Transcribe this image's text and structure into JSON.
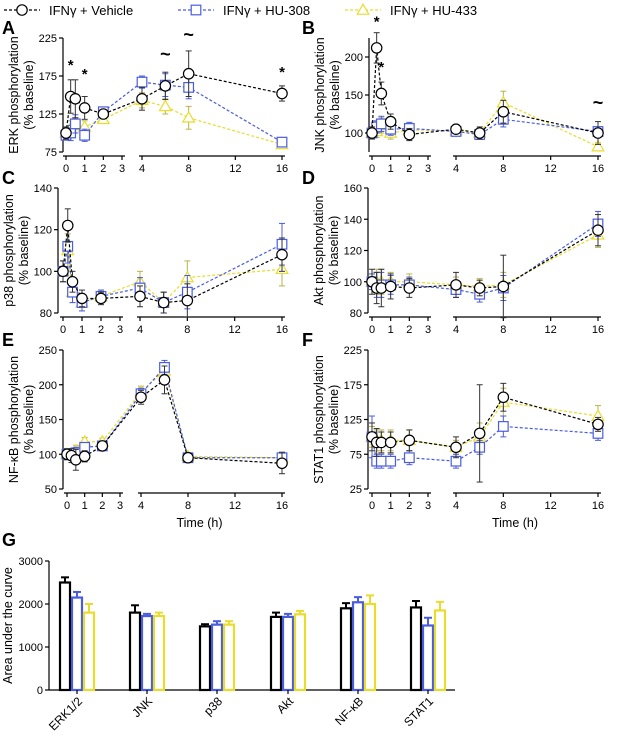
{
  "legend": {
    "items": [
      {
        "label": "IFNγ + Vehicle",
        "color": "#000000",
        "marker": "circle"
      },
      {
        "label": "IFNγ + HU-308",
        "color": "#4a5ce0",
        "marker": "square"
      },
      {
        "label": "IFNγ + HU-433",
        "color": "#e8dc2c",
        "marker": "triangle"
      }
    ]
  },
  "colors": {
    "vehicle": "#000000",
    "hu308": "#4a5ce0",
    "hu433": "#e8dc2c"
  },
  "time_label": "Time (h)",
  "chart_data": [
    {
      "panel": "A",
      "type": "line",
      "ylabel": [
        "ERK phosphorylation",
        "(% baseline)"
      ],
      "ylim": [
        75,
        225
      ],
      "yticks": [
        75,
        125,
        175,
        225
      ],
      "xticks_left": [
        0,
        1,
        2,
        3
      ],
      "xticks_right": [
        4,
        8,
        12,
        16
      ],
      "xlabel": "",
      "series": [
        {
          "name": "IFNγ + Vehicle",
          "x": [
            0,
            0.25,
            0.5,
            1,
            2,
            4,
            6,
            8,
            16
          ],
          "y": [
            100,
            148,
            145,
            133,
            125,
            145,
            162,
            178,
            152
          ],
          "err": [
            8,
            22,
            25,
            15,
            5,
            15,
            18,
            30,
            10
          ]
        },
        {
          "name": "IFNγ + HU-308",
          "x": [
            0,
            0.25,
            0.5,
            1,
            2,
            4,
            6,
            8,
            16
          ],
          "y": [
            97,
            100,
            112,
            97,
            128,
            167,
            163,
            160,
            88
          ],
          "err": [
            5,
            10,
            12,
            8,
            5,
            8,
            15,
            15,
            5
          ]
        },
        {
          "name": "IFNγ + HU-433",
          "x": [
            0,
            0.25,
            0.5,
            1,
            2,
            4,
            6,
            8,
            16
          ],
          "y": [
            100,
            106,
            110,
            108,
            118,
            143,
            135,
            120,
            85
          ],
          "err": [
            5,
            10,
            10,
            8,
            5,
            10,
            10,
            15,
            5
          ]
        }
      ],
      "annotations": [
        {
          "x": 0.25,
          "y": 183,
          "text": "*"
        },
        {
          "x": 1,
          "y": 171,
          "text": "*"
        },
        {
          "x": 6,
          "y": 196,
          "text": "~"
        },
        {
          "x": 8,
          "y": 222,
          "text": "~"
        },
        {
          "x": 16,
          "y": 174,
          "text": "*"
        }
      ]
    },
    {
      "panel": "B",
      "type": "line",
      "ylabel": [
        "JNK phosphorylation",
        "(% baseline)"
      ],
      "ylim": [
        75,
        225
      ],
      "yticks": [
        100,
        150,
        200
      ],
      "xticks_left": [
        0,
        1,
        2,
        3
      ],
      "xticks_right": [
        4,
        8,
        12,
        16
      ],
      "xlabel": "",
      "series": [
        {
          "name": "IFNγ + Vehicle",
          "x": [
            0,
            0.25,
            0.5,
            1,
            2,
            4,
            6,
            8,
            16
          ],
          "y": [
            100,
            212,
            152,
            115,
            98,
            105,
            100,
            128,
            100
          ],
          "err": [
            8,
            20,
            15,
            10,
            8,
            5,
            8,
            15,
            15
          ]
        },
        {
          "name": "IFNγ + HU-308",
          "x": [
            0,
            0.25,
            0.5,
            1,
            2,
            4,
            6,
            8,
            16
          ],
          "y": [
            100,
            108,
            112,
            105,
            106,
            102,
            98,
            118,
            102
          ],
          "err": [
            5,
            8,
            10,
            8,
            8,
            5,
            5,
            10,
            5
          ]
        },
        {
          "name": "IFNγ + HU-433",
          "x": [
            0,
            0.25,
            0.5,
            1,
            2,
            4,
            6,
            8,
            16
          ],
          "y": [
            100,
            102,
            110,
            100,
            104,
            103,
            100,
            140,
            82
          ],
          "err": [
            5,
            8,
            10,
            8,
            8,
            5,
            5,
            15,
            5
          ]
        }
      ],
      "annotations": [
        {
          "x": 0.25,
          "y": 240,
          "text": "*"
        },
        {
          "x": 0.5,
          "y": 180,
          "text": "*"
        },
        {
          "x": 16,
          "y": 132,
          "text": "~"
        }
      ]
    },
    {
      "panel": "C",
      "type": "line",
      "ylabel": [
        "p38 phosphorylation",
        "(% baseline)"
      ],
      "ylim": [
        80,
        140
      ],
      "yticks": [
        80,
        100,
        120,
        140
      ],
      "xticks_left": [
        0,
        1,
        2,
        3
      ],
      "xticks_right": [
        4,
        8,
        12,
        16
      ],
      "xlabel": "",
      "series": [
        {
          "name": "IFNγ + Vehicle",
          "x": [
            0,
            0.25,
            0.5,
            1,
            2,
            4,
            6,
            8,
            16
          ],
          "y": [
            100,
            122,
            95,
            87,
            87,
            88,
            85,
            86,
            108
          ],
          "err": [
            5,
            8,
            5,
            4,
            3,
            5,
            5,
            8,
            8
          ]
        },
        {
          "name": "IFNγ + HU-308",
          "x": [
            0,
            0.25,
            0.5,
            1,
            2,
            4,
            6,
            8,
            16
          ],
          "y": [
            100,
            112,
            90,
            85,
            88,
            92,
            85,
            90,
            113
          ],
          "err": [
            5,
            8,
            5,
            4,
            3,
            5,
            5,
            8,
            10
          ]
        },
        {
          "name": "IFNγ + HU-433",
          "x": [
            0,
            0.25,
            0.5,
            1,
            2,
            4,
            6,
            8,
            16
          ],
          "y": [
            100,
            110,
            90,
            85,
            88,
            95,
            85,
            97,
            101
          ],
          "err": [
            5,
            8,
            5,
            4,
            3,
            5,
            5,
            8,
            8
          ]
        }
      ],
      "annotations": []
    },
    {
      "panel": "D",
      "type": "line",
      "ylabel": [
        "Akt phosphorylation",
        "(% baseline)"
      ],
      "ylim": [
        80,
        160
      ],
      "yticks": [
        80,
        100,
        120,
        140,
        160
      ],
      "xticks_left": [
        0,
        1,
        2,
        3
      ],
      "xticks_right": [
        4,
        8,
        12,
        16
      ],
      "xlabel": "",
      "series": [
        {
          "name": "IFNγ + Vehicle",
          "x": [
            0,
            0.25,
            0.5,
            1,
            2,
            4,
            6,
            8,
            16
          ],
          "y": [
            100,
            96,
            96,
            97,
            96,
            98,
            96,
            97,
            133
          ],
          "err": [
            8,
            10,
            12,
            8,
            6,
            8,
            5,
            20,
            10
          ]
        },
        {
          "name": "IFNγ + HU-308",
          "x": [
            0,
            0.25,
            0.5,
            1,
            2,
            4,
            6,
            8,
            16
          ],
          "y": [
            100,
            98,
            98,
            98,
            98,
            95,
            92,
            96,
            137
          ],
          "err": [
            5,
            8,
            8,
            6,
            5,
            5,
            5,
            8,
            8
          ]
        },
        {
          "name": "IFNγ + HU-433",
          "x": [
            0,
            0.25,
            0.5,
            1,
            2,
            4,
            6,
            8,
            16
          ],
          "y": [
            100,
            100,
            100,
            100,
            100,
            98,
            97,
            98,
            130
          ],
          "err": [
            5,
            8,
            8,
            6,
            5,
            5,
            5,
            8,
            8
          ]
        }
      ],
      "annotations": []
    },
    {
      "panel": "E",
      "type": "line",
      "ylabel": [
        "NF-κB phosphorylation",
        "(% baseline)"
      ],
      "ylim": [
        50,
        250
      ],
      "yticks": [
        50,
        100,
        150,
        200,
        250
      ],
      "xticks_left": [
        0,
        1,
        2,
        3
      ],
      "xticks_right": [
        4,
        8,
        12,
        16
      ],
      "xlabel": "Time (h)",
      "series": [
        {
          "name": "IFNγ + Vehicle",
          "x": [
            0,
            0.25,
            0.5,
            1,
            2,
            4,
            6,
            8,
            16
          ],
          "y": [
            100,
            98,
            92,
            97,
            112,
            182,
            207,
            95,
            87
          ],
          "err": [
            8,
            10,
            15,
            8,
            5,
            10,
            20,
            5,
            15
          ]
        },
        {
          "name": "IFNγ + HU-308",
          "x": [
            0,
            0.25,
            0.5,
            1,
            2,
            4,
            6,
            8,
            16
          ],
          "y": [
            100,
            100,
            102,
            110,
            112,
            187,
            225,
            95,
            95
          ],
          "err": [
            5,
            8,
            8,
            6,
            5,
            8,
            10,
            5,
            8
          ]
        },
        {
          "name": "IFNγ + HU-433",
          "x": [
            0,
            0.25,
            0.5,
            1,
            2,
            4,
            6,
            8,
            16
          ],
          "y": [
            100,
            100,
            105,
            118,
            118,
            190,
            220,
            97,
            95
          ],
          "err": [
            5,
            8,
            8,
            6,
            5,
            8,
            10,
            5,
            8
          ]
        }
      ],
      "annotations": []
    },
    {
      "panel": "F",
      "type": "line",
      "ylabel": [
        "STAT1 phosphorylation",
        "(% baseline)"
      ],
      "ylim": [
        25,
        225
      ],
      "yticks": [
        25,
        75,
        125,
        175,
        225
      ],
      "xticks_left": [
        0,
        1,
        2,
        3
      ],
      "xticks_right": [
        4,
        8,
        12,
        16
      ],
      "xlabel": "Time (h)",
      "series": [
        {
          "name": "IFNγ + Vehicle",
          "x": [
            0,
            0.25,
            0.5,
            1,
            2,
            4,
            6,
            8,
            16
          ],
          "y": [
            100,
            92,
            92,
            92,
            95,
            85,
            105,
            157,
            118
          ],
          "err": [
            20,
            20,
            15,
            15,
            15,
            15,
            70,
            20,
            10
          ]
        },
        {
          "name": "IFNγ + HU-308",
          "x": [
            0,
            0.25,
            0.5,
            1,
            2,
            4,
            6,
            8,
            16
          ],
          "y": [
            100,
            65,
            65,
            65,
            70,
            65,
            85,
            115,
            105
          ],
          "err": [
            30,
            10,
            10,
            10,
            10,
            10,
            10,
            15,
            10
          ]
        },
        {
          "name": "IFNγ + HU-433",
          "x": [
            0,
            0.25,
            0.5,
            1,
            2,
            4,
            6,
            8,
            16
          ],
          "y": [
            100,
            95,
            95,
            95,
            95,
            85,
            100,
            150,
            130
          ],
          "err": [
            15,
            15,
            15,
            15,
            15,
            10,
            20,
            20,
            15
          ]
        }
      ],
      "annotations": []
    },
    {
      "panel": "G",
      "type": "bar",
      "ylabel": "Area under the curve",
      "ylim": [
        0,
        3000
      ],
      "yticks": [
        0,
        1000,
        2000,
        3000
      ],
      "categories": [
        "ERK1/2",
        "JNK",
        "p38",
        "Akt",
        "NF-κB",
        "STAT1"
      ],
      "series": [
        {
          "name": "IFNγ + Vehicle",
          "values": [
            2500,
            1800,
            1480,
            1700,
            1900,
            1920
          ],
          "err": [
            120,
            170,
            50,
            100,
            120,
            150
          ]
        },
        {
          "name": "IFNγ + HU-308",
          "values": [
            2150,
            1720,
            1520,
            1700,
            2040,
            1500
          ],
          "err": [
            130,
            50,
            80,
            70,
            120,
            180
          ]
        },
        {
          "name": "IFNγ + HU-433",
          "values": [
            1800,
            1720,
            1520,
            1760,
            2000,
            1850
          ],
          "err": [
            200,
            80,
            80,
            80,
            200,
            200
          ]
        }
      ]
    }
  ]
}
